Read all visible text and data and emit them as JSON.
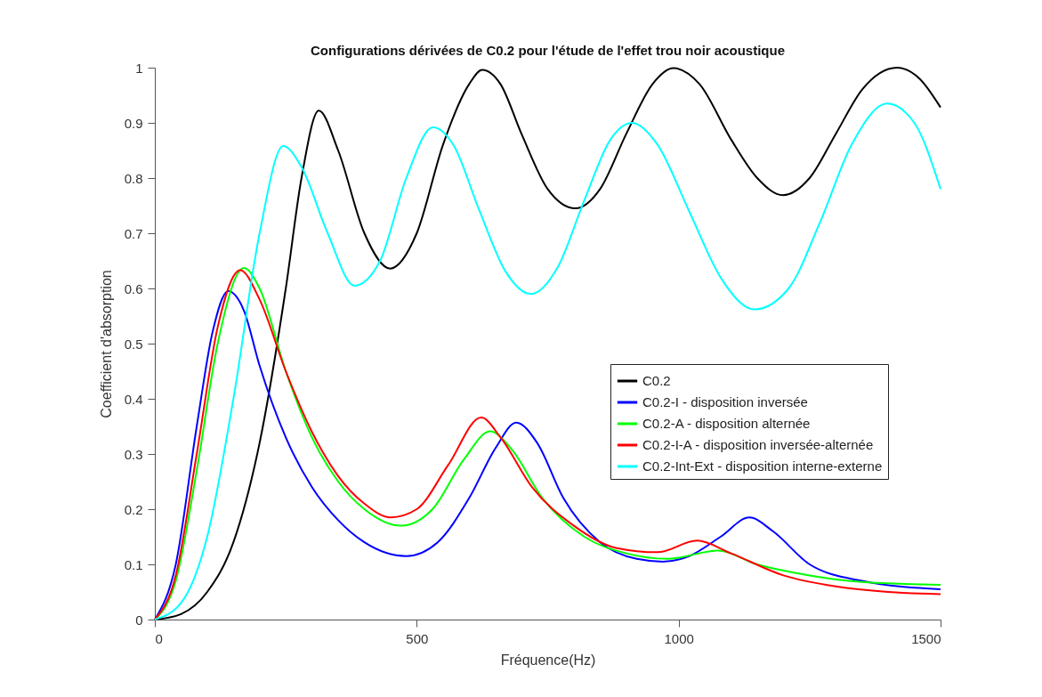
{
  "chart_data": {
    "type": "line",
    "title": "Configurations dérivées de C0.2 pour l'étude de l'effet trou noir acoustique",
    "xlabel": "Fréquence(Hz)",
    "ylabel": "Coefficient d'absorption",
    "xlim": [
      0,
      1500
    ],
    "xticks": [
      0,
      500,
      1000,
      1500
    ],
    "ylim": [
      0,
      1
    ],
    "yticks": [
      0,
      0.1,
      0.2,
      0.3,
      0.4,
      0.5,
      0.6,
      0.7,
      0.8,
      0.9,
      1
    ],
    "grid": false,
    "legend": "right",
    "marker": "none",
    "line_style": "solid",
    "series": [
      {
        "name": "C0.2",
        "color": "#000000",
        "x": [
          0,
          50,
          100,
          150,
          200,
          250,
          280,
          313,
          350,
          400,
          449,
          500,
          550,
          600,
          625,
          660,
          700,
          750,
          803,
          850,
          900,
          950,
          990,
          1040,
          1100,
          1150,
          1199,
          1250,
          1300,
          1350,
          1417,
          1460,
          1500
        ],
        "values": [
          0,
          0.01,
          0.05,
          0.14,
          0.32,
          0.6,
          0.8,
          0.922,
          0.85,
          0.7,
          0.636,
          0.7,
          0.86,
          0.97,
          0.996,
          0.97,
          0.88,
          0.78,
          0.745,
          0.78,
          0.88,
          0.97,
          0.999,
          0.97,
          0.87,
          0.8,
          0.769,
          0.8,
          0.88,
          0.96,
          1,
          0.98,
          0.928
        ]
      },
      {
        "name": "C0.2-I - disposition inversée",
        "color": "#0000ff",
        "x": [
          0,
          40,
          80,
          110,
          140,
          170,
          200,
          250,
          300,
          350,
          400,
          480,
          540,
          600,
          650,
          690,
          730,
          780,
          850,
          920,
          970,
          1020,
          1080,
          1135,
          1180,
          1250,
          1350,
          1500
        ],
        "values": [
          0,
          0.1,
          0.35,
          0.52,
          0.595,
          0.56,
          0.46,
          0.33,
          0.24,
          0.18,
          0.14,
          0.115,
          0.14,
          0.22,
          0.31,
          0.357,
          0.32,
          0.22,
          0.14,
          0.11,
          0.105,
          0.115,
          0.15,
          0.185,
          0.16,
          0.1,
          0.07,
          0.055
        ]
      },
      {
        "name": "C0.2-A - disposition alternée",
        "color": "#00ff00",
        "x": [
          0,
          40,
          80,
          120,
          170,
          200,
          250,
          300,
          350,
          400,
          470,
          530,
          590,
          640,
          680,
          740,
          820,
          900,
          980,
          1075,
          1150,
          1250,
          1350,
          1500
        ],
        "values": [
          0,
          0.07,
          0.27,
          0.5,
          0.637,
          0.6,
          0.45,
          0.33,
          0.25,
          0.2,
          0.17,
          0.2,
          0.29,
          0.341,
          0.31,
          0.22,
          0.15,
          0.12,
          0.11,
          0.125,
          0.1,
          0.08,
          0.068,
          0.063
        ]
      },
      {
        "name": "C0.2-I-A - disposition inversée-alternée",
        "color": "#ff0000",
        "x": [
          0,
          40,
          80,
          120,
          163,
          200,
          250,
          300,
          350,
          400,
          450,
          500,
          560,
          623,
          660,
          720,
          800,
          880,
          960,
          1035,
          1100,
          1200,
          1300,
          1400,
          1500
        ],
        "values": [
          0,
          0.08,
          0.3,
          0.53,
          0.633,
          0.58,
          0.45,
          0.34,
          0.26,
          0.21,
          0.185,
          0.2,
          0.28,
          0.366,
          0.33,
          0.24,
          0.17,
          0.13,
          0.122,
          0.143,
          0.12,
          0.08,
          0.06,
          0.05,
          0.046
        ]
      },
      {
        "name": "C0.2-Int-Ext - disposition interne-externe",
        "color": "#00ffff",
        "x": [
          0,
          50,
          100,
          150,
          200,
          245,
          280,
          330,
          381,
          430,
          480,
          531,
          570,
          620,
          670,
          718,
          770,
          820,
          870,
          911,
          960,
          1020,
          1080,
          1145,
          1210,
          1270,
          1330,
          1398,
          1450,
          1500
        ],
        "values": [
          0,
          0.03,
          0.15,
          0.4,
          0.7,
          0.858,
          0.82,
          0.7,
          0.605,
          0.65,
          0.8,
          0.892,
          0.86,
          0.74,
          0.63,
          0.59,
          0.64,
          0.76,
          0.87,
          0.9,
          0.86,
          0.74,
          0.62,
          0.562,
          0.6,
          0.72,
          0.86,
          0.935,
          0.9,
          0.78
        ]
      }
    ]
  }
}
